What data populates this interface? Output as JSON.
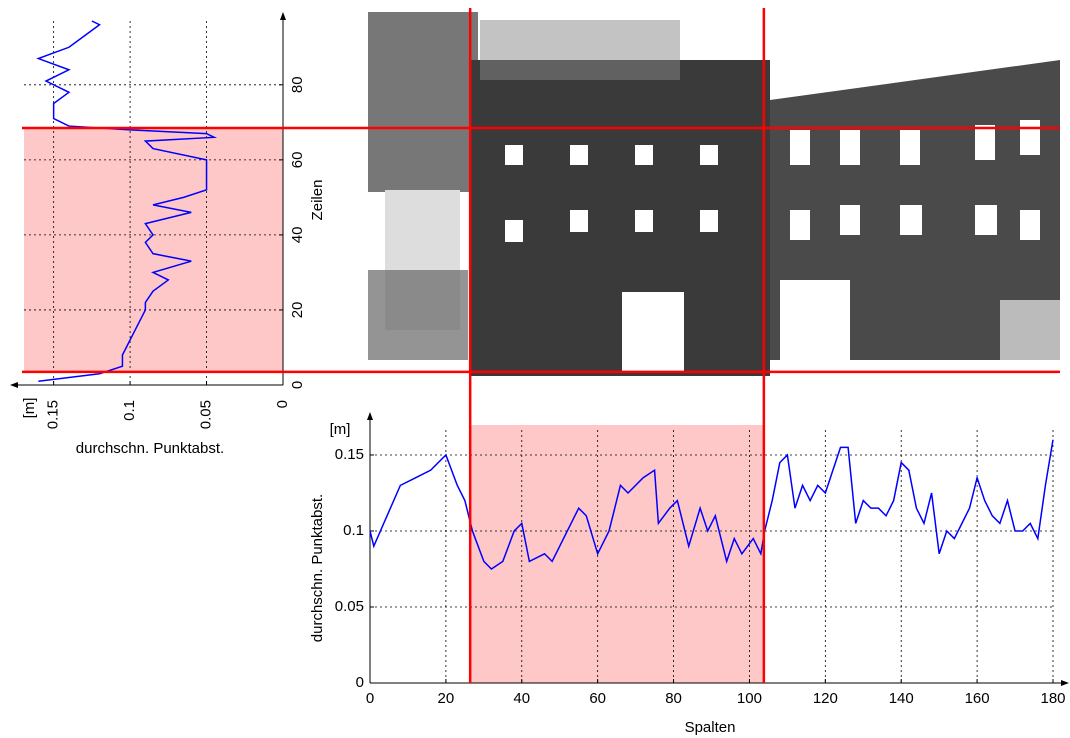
{
  "chart_data": [
    {
      "type": "line",
      "orientation": "vertical",
      "xlabel": "durchschn. Punktabst.",
      "xunit": "[m]",
      "ylabel": "Zeilen",
      "xlim": [
        0,
        0.172
      ],
      "x_reversed": true,
      "xticks": [
        0,
        0.05,
        0.1,
        0.15
      ],
      "ylim": [
        0,
        97
      ],
      "yticks": [
        0,
        20,
        40,
        60,
        80
      ],
      "grid": true,
      "highlight": [
        3.5,
        68.5
      ],
      "series": [
        {
          "color": "#0000ff",
          "y": [
            1,
            3,
            5,
            8,
            12,
            16,
            20,
            22,
            25,
            28,
            30,
            33,
            35,
            38,
            40,
            43,
            46,
            48,
            50,
            52,
            55,
            58,
            60,
            63,
            65,
            66,
            67,
            68,
            69,
            71,
            75,
            78,
            81,
            84,
            87,
            90,
            93,
            96,
            97
          ],
          "values": [
            0.16,
            0.12,
            0.105,
            0.105,
            0.1,
            0.095,
            0.09,
            0.09,
            0.085,
            0.075,
            0.085,
            0.06,
            0.085,
            0.09,
            0.085,
            0.09,
            0.06,
            0.085,
            0.065,
            0.05,
            0.05,
            0.05,
            0.05,
            0.085,
            0.09,
            0.045,
            0.05,
            0.1,
            0.14,
            0.15,
            0.15,
            0.14,
            0.155,
            0.14,
            0.16,
            0.14,
            0.13,
            0.12,
            0.125
          ]
        }
      ]
    },
    {
      "type": "line",
      "xlabel": "Spalten",
      "ylabel": "durchschn. Punktabst.",
      "yunit": "[m]",
      "xlim": [
        0,
        180
      ],
      "xticks": [
        0,
        20,
        40,
        60,
        80,
        100,
        120,
        140,
        160,
        180
      ],
      "ylim": [
        0,
        0.173
      ],
      "yticks": [
        0,
        0.05,
        0.1,
        0.15
      ],
      "grid": true,
      "highlight": [
        26.4,
        103.8
      ],
      "series": [
        {
          "color": "#0000ff",
          "x": [
            0,
            1,
            8,
            12,
            16,
            20,
            23,
            25,
            27,
            30,
            32,
            35,
            38,
            40,
            42,
            46,
            48,
            50,
            52,
            55,
            57,
            60,
            63,
            66,
            68,
            72,
            75,
            76,
            79,
            81,
            84,
            87,
            89,
            91,
            94,
            96,
            98,
            101,
            103,
            104,
            106,
            108,
            110,
            112,
            114,
            116,
            118,
            120,
            122,
            124,
            126,
            128,
            130,
            132,
            134,
            136,
            138,
            140,
            142,
            144,
            146,
            148,
            150,
            152,
            154,
            156,
            158,
            160,
            162,
            164,
            166,
            168,
            170,
            172,
            174,
            176,
            178,
            180
          ],
          "values": [
            0.1,
            0.09,
            0.13,
            0.135,
            0.14,
            0.15,
            0.13,
            0.12,
            0.1,
            0.08,
            0.075,
            0.08,
            0.1,
            0.105,
            0.08,
            0.085,
            0.08,
            0.09,
            0.1,
            0.115,
            0.11,
            0.085,
            0.1,
            0.13,
            0.125,
            0.135,
            0.14,
            0.105,
            0.115,
            0.12,
            0.09,
            0.115,
            0.1,
            0.11,
            0.08,
            0.095,
            0.085,
            0.095,
            0.085,
            0.1,
            0.12,
            0.145,
            0.15,
            0.115,
            0.13,
            0.12,
            0.13,
            0.125,
            0.14,
            0.155,
            0.155,
            0.105,
            0.12,
            0.115,
            0.115,
            0.11,
            0.12,
            0.145,
            0.14,
            0.115,
            0.105,
            0.125,
            0.085,
            0.1,
            0.095,
            0.105,
            0.115,
            0.135,
            0.12,
            0.11,
            0.105,
            0.12,
            0.1,
            0.1,
            0.105,
            0.095,
            0.13,
            0.16
          ]
        }
      ]
    }
  ]
}
